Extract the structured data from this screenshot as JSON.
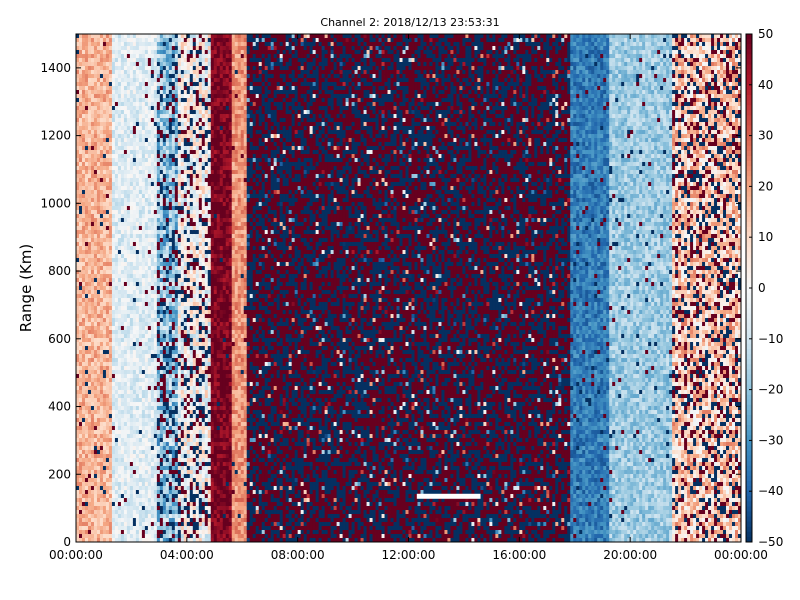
{
  "chart_data": {
    "type": "heatmap",
    "title": "Channel 2: 2018/12/13 23:53:31",
    "xlabel": "",
    "ylabel": "Range (Km)",
    "x_ticks": [
      "00:00:00",
      "04:00:00",
      "08:00:00",
      "12:00:00",
      "16:00:00",
      "20:00:00",
      "00:00:00"
    ],
    "y_ticks": [
      "0",
      "200",
      "400",
      "600",
      "800",
      "1000",
      "1200",
      "1400"
    ],
    "xlim_hours": [
      0,
      24
    ],
    "ylim": [
      0,
      1500
    ],
    "colorbar": {
      "colormap": "RdBu_r",
      "vmin": -50,
      "vmax": 50,
      "ticks": [
        "50",
        "40",
        "30",
        "20",
        "10",
        "0",
        "−10",
        "−20",
        "−30",
        "−40",
        "−50"
      ]
    },
    "value_profile_by_time": [
      {
        "start_hour": 0.0,
        "end_hour": 1.3,
        "value": 17,
        "description_band": "light red"
      },
      {
        "start_hour": 1.3,
        "end_hour": 2.9,
        "value": -6,
        "description_band": "light blue"
      },
      {
        "start_hour": 2.9,
        "end_hour": 3.7,
        "value": -20,
        "description_band": "blue, noisy"
      },
      {
        "start_hour": 3.7,
        "end_hour": 4.9,
        "value": 0,
        "description_band": "noise"
      },
      {
        "start_hour": 4.9,
        "end_hour": 5.6,
        "value": 48,
        "description_band": "dark red"
      },
      {
        "start_hour": 5.6,
        "end_hour": 6.2,
        "value": 22,
        "description_band": "red"
      },
      {
        "start_hour": 6.2,
        "end_hour": 17.8,
        "value": 0,
        "description_band": "saturated noise"
      },
      {
        "start_hour": 17.8,
        "end_hour": 19.2,
        "value": -35,
        "description_band": "blue"
      },
      {
        "start_hour": 19.2,
        "end_hour": 21.5,
        "value": -18,
        "description_band": "light blue"
      },
      {
        "start_hour": 21.5,
        "end_hour": 24.0,
        "value": 12,
        "description_band": "light red, noisy"
      }
    ],
    "gap_segment": {
      "start_hour": 12.3,
      "end_hour": 14.6,
      "range_km": 135,
      "color": "#ffffff"
    }
  }
}
